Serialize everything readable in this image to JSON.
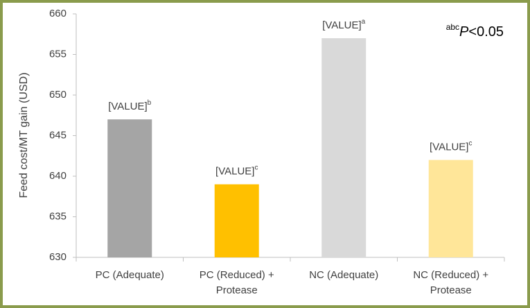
{
  "chart_data": {
    "type": "bar",
    "y_label": "Feed cost/MT gain (USD)",
    "categories": [
      [
        "PC (Adequate)"
      ],
      [
        "PC (Reduced) +",
        "Protease"
      ],
      [
        "NC (Adequate)"
      ],
      [
        "NC (Reduced) +",
        "Protease"
      ]
    ],
    "values": [
      647,
      639,
      657,
      642
    ],
    "colors": [
      "#a5a5a5",
      "#ffc000",
      "#d9d9d9",
      "#ffe699"
    ],
    "bar_labels": [
      "[VALUE]",
      "[VALUE]",
      "[VALUE]",
      "[VALUE]"
    ],
    "bar_label_superscripts": [
      "b",
      "c",
      "a",
      "c"
    ],
    "annotation": {
      "superscript": "abc",
      "italic": "P",
      "text": "<0.05"
    },
    "ylim": [
      630,
      660
    ],
    "yticks": [
      630,
      635,
      640,
      645,
      650,
      655,
      660
    ],
    "grid": false
  }
}
